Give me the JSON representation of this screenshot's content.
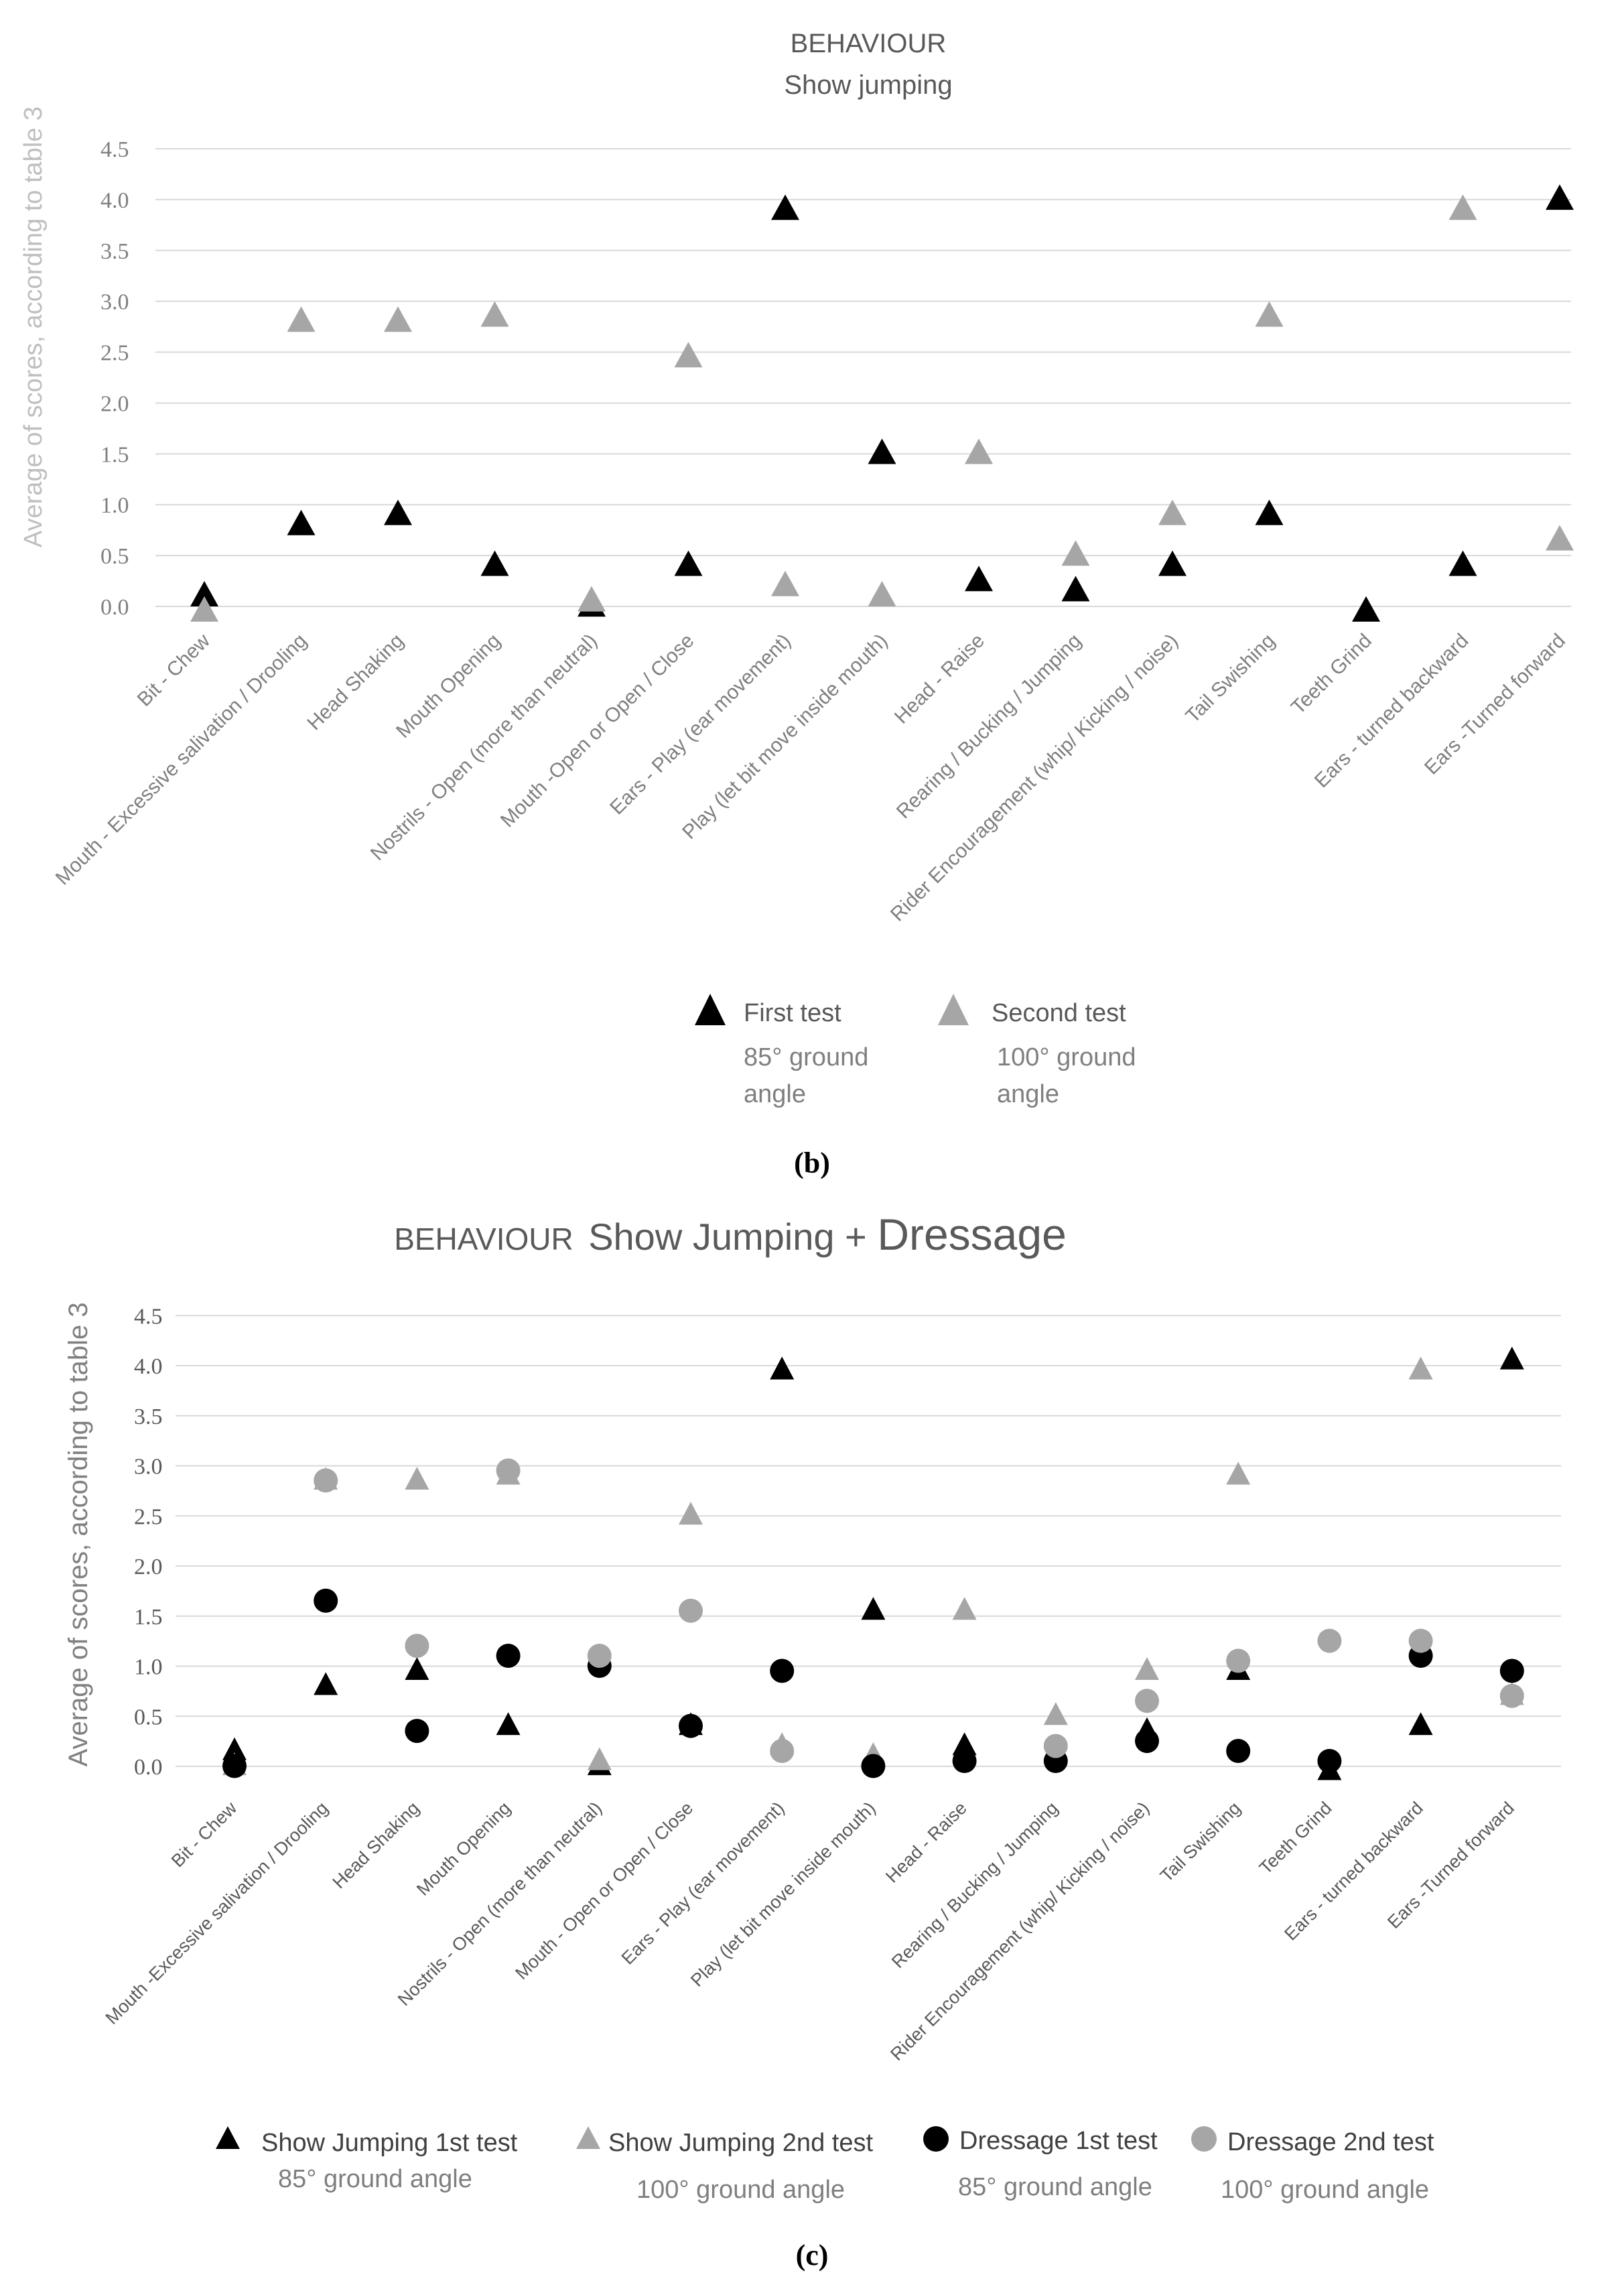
{
  "colors": {
    "first": "#000000",
    "second": "#a6a6a6",
    "title": "#595959",
    "axis_label": "#bfbfbf",
    "grid": "#d9d9d9"
  },
  "captions": {
    "b": "(b)",
    "c": "(c)"
  },
  "chart_data": [
    {
      "type": "scatter",
      "title": "BEHAVIOUR",
      "subtitle": "Show jumping",
      "xlabel": "",
      "ylabel": "Average of scores, according to table 3",
      "ylim": [
        0,
        4.5
      ],
      "yticks": [
        "0.0",
        "0.5",
        "1.0",
        "1.5",
        "2.0",
        "2.5",
        "3.0",
        "3.5",
        "4.0",
        "4.5"
      ],
      "grid": true,
      "categories": [
        "Bit - Chew",
        "Mouth - Excessive salivation / Drooling",
        "Head Shaking",
        "Mouth Opening",
        "Nostrils - Open (more than neutral)",
        "Mouth -Open or Open / Close",
        "Ears - Play (ear movement)",
        "Play (let bit move inside mouth)",
        "Head - Raise",
        "Rearing / Bucking / Jumping",
        "Rider Encouragement (whip/ Kicking / noise)",
        "Tail Swishing",
        "Teeth Grind",
        "Ears - turned backward",
        "Ears -Turned forward"
      ],
      "series": [
        {
          "name": "First test",
          "note": "85° ground angle",
          "marker": "triangle",
          "color": "#000000",
          "values": [
            0.1,
            0.8,
            0.9,
            0.4,
            0.0,
            0.4,
            3.9,
            1.5,
            0.25,
            0.15,
            0.4,
            0.9,
            -0.05,
            0.4,
            4.0
          ]
        },
        {
          "name": "Second test",
          "note": "100° ground angle",
          "marker": "triangle",
          "color": "#a6a6a6",
          "values": [
            -0.05,
            2.8,
            2.8,
            2.85,
            0.05,
            2.45,
            0.2,
            0.1,
            1.5,
            0.5,
            0.9,
            2.85,
            null,
            3.9,
            0.65
          ]
        }
      ],
      "legend": [
        {
          "label": "First test",
          "note": [
            "85°  ground",
            "angle"
          ]
        },
        {
          "label": "Second test",
          "note": [
            "100°  ground",
            "angle"
          ]
        }
      ],
      "legend_position": "bottom"
    },
    {
      "type": "scatter",
      "title": "BEHAVIOUR  Show Jumping + Dressage",
      "title_parts": [
        "BEHAVIOUR",
        "Show Jumping + ",
        "Dressage"
      ],
      "xlabel": "",
      "ylabel": "Average of scores, according to table 3",
      "ylim": [
        -0.1,
        4.5
      ],
      "yticks": [
        "0.0",
        "0.5",
        "1.0",
        "1.5",
        "2.0",
        "2.5",
        "3.0",
        "3.5",
        "4.0",
        "4.5"
      ],
      "grid": true,
      "categories": [
        "Bit - Chew",
        "Mouth -Excessive salivation / Drooling",
        "Head Shaking",
        "Mouth Opening",
        "Nostrils - Open (more than neutral)",
        "Mouth - Open or Open / Close",
        "Ears - Play (ear movement)",
        "Play (let bit move inside mouth)",
        "Head - Raise",
        "Rearing / Bucking / Jumping",
        "Rider Encouragement (whip/ Kicking / noise)",
        "Tail Swishing",
        "Teeth Grind",
        "Ears - turned backward",
        "Ears -Turned forward"
      ],
      "series": [
        {
          "name": "Show Jumping 1st test",
          "note": "85°  ground angle",
          "marker": "triangle",
          "color": "#000000",
          "values": [
            0.1,
            0.75,
            0.9,
            0.35,
            -0.05,
            0.35,
            3.9,
            1.5,
            0.15,
            null,
            0.3,
            0.9,
            -0.1,
            0.35,
            4.0
          ]
        },
        {
          "name": "Show Jumping 2nd test",
          "note": "100°  ground angle",
          "marker": "triangle",
          "color": "#a6a6a6",
          "values": [
            -0.05,
            2.8,
            2.8,
            2.85,
            0.0,
            2.45,
            0.15,
            0.05,
            1.5,
            0.45,
            0.9,
            2.85,
            null,
            3.9,
            0.65
          ]
        },
        {
          "name": "Dressage 1st test",
          "note": "85°  ground angle",
          "marker": "circle",
          "color": "#000000",
          "values": [
            -0.05,
            1.6,
            0.3,
            1.05,
            0.95,
            0.35,
            0.9,
            -0.05,
            0.0,
            0.0,
            0.2,
            0.1,
            0.0,
            1.05,
            0.9
          ]
        },
        {
          "name": "Dressage 2nd test",
          "note": "100°  ground angle",
          "marker": "circle",
          "color": "#a6a6a6",
          "values": [
            null,
            2.8,
            1.15,
            2.9,
            1.05,
            1.5,
            0.1,
            null,
            null,
            0.15,
            0.6,
            1.0,
            1.2,
            1.2,
            0.65
          ]
        }
      ],
      "legend": [
        {
          "label": "Show Jumping 1st test",
          "note": "85°  ground angle"
        },
        {
          "label": "Show Jumping 2nd test",
          "note": "100°  ground angle"
        },
        {
          "label": "Dressage  1st test",
          "note": "85°   ground angle"
        },
        {
          "label": "Dressage  2nd test",
          "note": "100°  ground angle"
        }
      ],
      "legend_position": "bottom"
    }
  ]
}
